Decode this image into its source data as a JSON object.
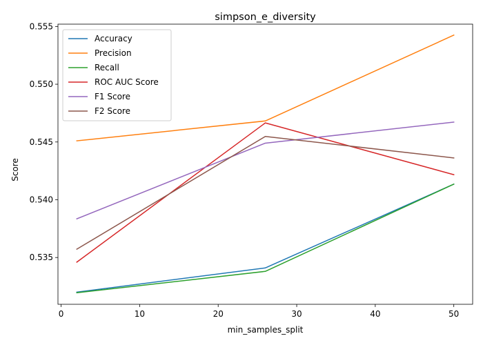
{
  "chart_data": {
    "type": "line",
    "title": "simpson_e_diversity",
    "xlabel": "min_samples_split",
    "ylabel": "Score",
    "x": [
      2,
      26,
      50
    ],
    "xlim": [
      -0.4,
      52.4
    ],
    "ylim": [
      0.53095,
      0.5552
    ],
    "xticks": [
      0,
      10,
      20,
      30,
      40,
      50
    ],
    "yticks": [
      0.535,
      0.54,
      0.545,
      0.55,
      0.555
    ],
    "ytick_labels": [
      "0.535",
      "0.540",
      "0.545",
      "0.550",
      "0.555"
    ],
    "grid": false,
    "legend_position": "upper-left",
    "series": [
      {
        "name": "Accuracy",
        "color": "#1f77b4",
        "values": [
          0.532,
          0.5341,
          0.54135
        ]
      },
      {
        "name": "Precision",
        "color": "#ff7f0e",
        "values": [
          0.5451,
          0.54682,
          0.55425
        ]
      },
      {
        "name": "Recall",
        "color": "#2ca02c",
        "values": [
          0.53195,
          0.5338,
          0.54135
        ]
      },
      {
        "name": "ROC AUC Score",
        "color": "#d62728",
        "values": [
          0.5346,
          0.54665,
          0.54217
        ]
      },
      {
        "name": "F1 Score",
        "color": "#9467bd",
        "values": [
          0.53835,
          0.5449,
          0.54672
        ]
      },
      {
        "name": "F2 Score",
        "color": "#8c564b",
        "values": [
          0.53572,
          0.54548,
          0.54362
        ]
      }
    ]
  }
}
